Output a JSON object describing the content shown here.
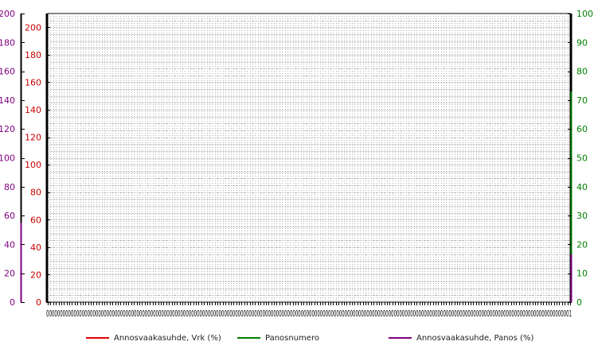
{
  "chart_data": {
    "type": "line",
    "title": "",
    "colors": {
      "series_red": "#e60000",
      "series_green": "#008000",
      "series_purple": "#800080",
      "grid": "#b0b0b0",
      "axis": "#000000"
    },
    "axes": {
      "outer_left": {
        "ylim": [
          0,
          200
        ],
        "ticks": [
          "0",
          "20",
          "40",
          "60",
          "80",
          "100",
          "120",
          "140",
          "160",
          "180",
          "200"
        ],
        "color": "#800080"
      },
      "inner_left": {
        "ylim": [
          0,
          210
        ],
        "ticks": [
          "0",
          "20",
          "40",
          "60",
          "80",
          "100",
          "120",
          "140",
          "160",
          "180",
          "200"
        ],
        "color": "#cc0000"
      },
      "right": {
        "ylim": [
          0,
          100
        ],
        "ticks": [
          "0",
          "10",
          "20",
          "30",
          "40",
          "50",
          "60",
          "70",
          "80",
          "90",
          "100"
        ],
        "color": "#008000"
      },
      "x": {
        "first_label": "0",
        "last_label": "1",
        "label_text": "000000000000000000000000000000000000000000000000000000000000000000000000000000000000000000000000000000000000000000000000000000000000000000000000000000000000000000000000000000000000000000000001"
      }
    },
    "grid": true,
    "series": [
      {
        "name": "Annosvaakasuhde, Vrk (%)",
        "color": "#e60000",
        "values": []
      },
      {
        "name": "Panosnumero",
        "color": "#008000",
        "values": []
      },
      {
        "name": "Annosvaakasuhde, Panos (%)",
        "color": "#800080",
        "values": []
      }
    ],
    "legend_position": "bottom"
  }
}
